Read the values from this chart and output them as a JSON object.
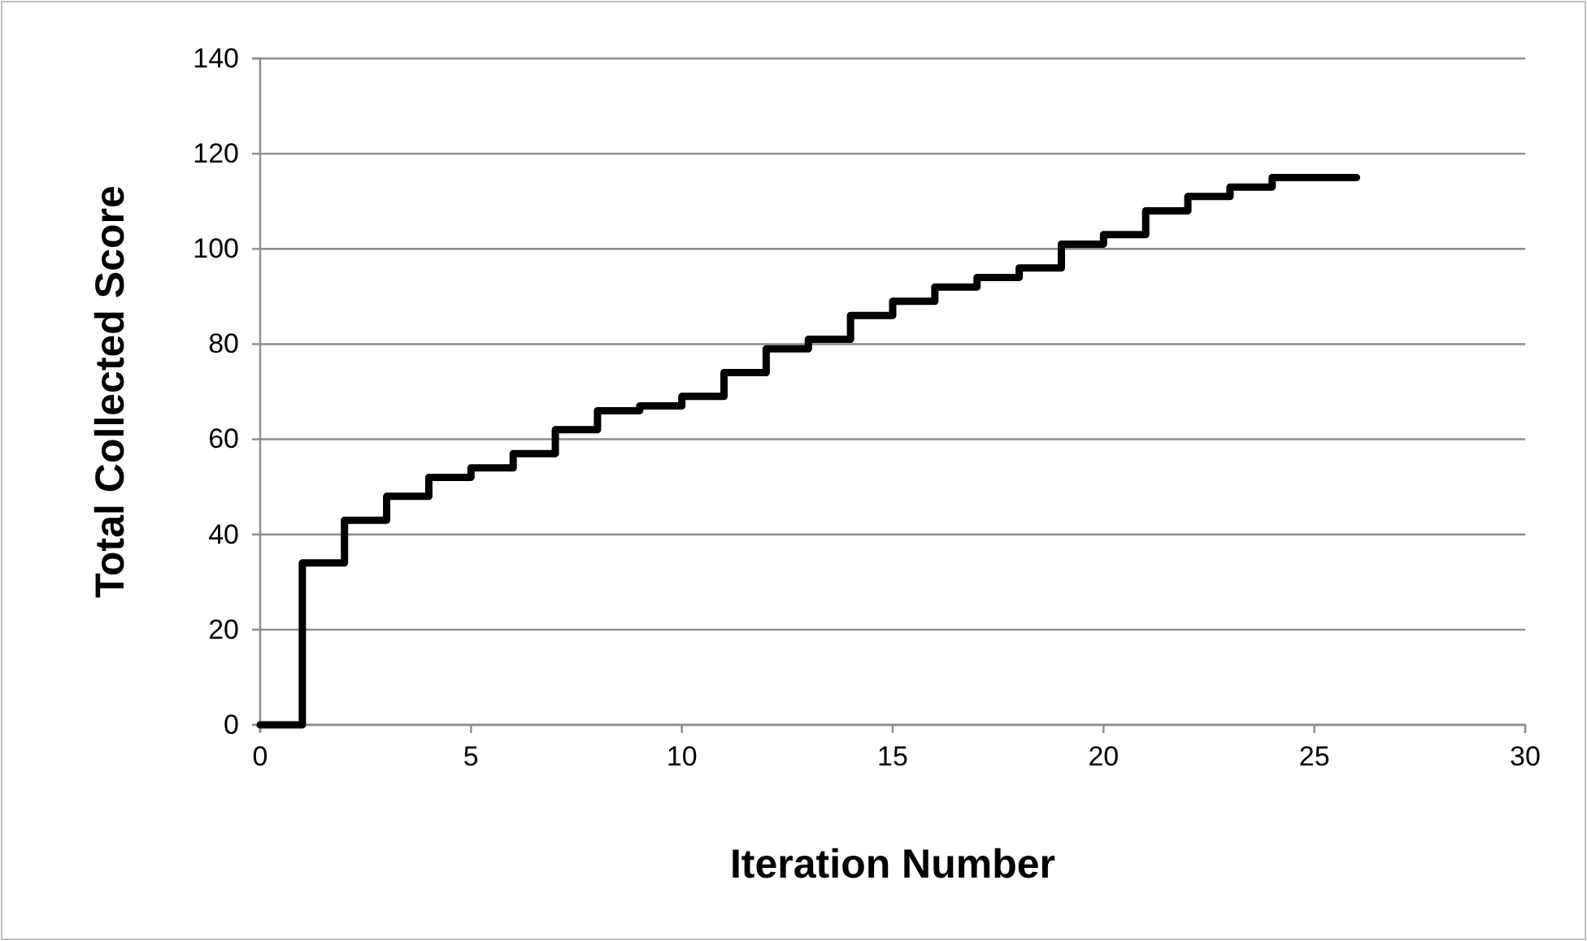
{
  "chart_data": {
    "type": "step",
    "xlabel": "Iteration Number",
    "ylabel": "Total Collected Score",
    "x": [
      0,
      1,
      2,
      3,
      4,
      5,
      6,
      7,
      8,
      9,
      10,
      11,
      12,
      13,
      14,
      15,
      16,
      17,
      18,
      19,
      20,
      21,
      22,
      23,
      24,
      25,
      26
    ],
    "values": [
      0,
      34,
      43,
      48,
      52,
      54,
      57,
      62,
      66,
      67,
      69,
      74,
      79,
      81,
      86,
      89,
      92,
      94,
      96,
      101,
      103,
      108,
      111,
      113,
      115,
      115,
      115
    ],
    "color": "#000000",
    "xlim": [
      0,
      30
    ],
    "xticks": [
      0,
      5,
      10,
      15,
      20,
      25,
      30
    ],
    "ylim": [
      0,
      140
    ],
    "yticks": [
      0,
      20,
      40,
      60,
      80,
      100,
      120,
      140
    ],
    "grid": "y",
    "marker": "none",
    "line_style": "solid"
  }
}
